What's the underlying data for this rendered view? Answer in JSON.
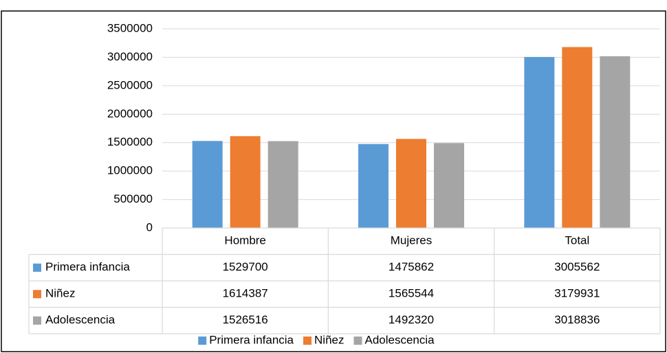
{
  "chart_data": {
    "type": "bar",
    "categories": [
      "Hombre",
      "Mujeres",
      "Total"
    ],
    "series": [
      {
        "name": "Primera infancia",
        "color": "#5b9bd5",
        "values": [
          1529700,
          1475862,
          3005562
        ]
      },
      {
        "name": "Niñez",
        "color": "#ed7d31",
        "values": [
          1614387,
          1565544,
          3179931
        ]
      },
      {
        "name": "Adolescencia",
        "color": "#a5a5a5",
        "values": [
          1526516,
          1492320,
          3018836
        ]
      }
    ],
    "ylim": [
      0,
      3500000
    ],
    "yticks": [
      0,
      500000,
      1000000,
      1500000,
      2000000,
      2500000,
      3000000,
      3500000
    ],
    "grid": true,
    "legend": "bottom"
  }
}
